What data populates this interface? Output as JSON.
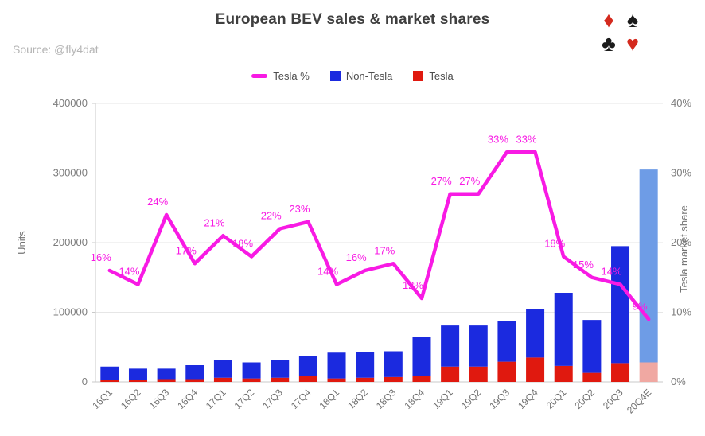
{
  "header": {
    "title": "European BEV sales & market shares",
    "source": "Source: @fly4dat",
    "suits": [
      {
        "name": "diamond",
        "glyph": "♦",
        "color": "#d42a1e"
      },
      {
        "name": "spade",
        "glyph": "♠",
        "color": "#1b1b1b"
      },
      {
        "name": "club",
        "glyph": "♣",
        "color": "#1b1b1b"
      },
      {
        "name": "heart",
        "glyph": "♥",
        "color": "#d42a1e"
      }
    ]
  },
  "legend": [
    {
      "label": "Tesla %",
      "color": "#f81ae4",
      "shape": "line"
    },
    {
      "label": "Non-Tesla",
      "color": "#1b2adf",
      "shape": "square"
    },
    {
      "label": "Tesla",
      "color": "#e0190f",
      "shape": "square"
    }
  ],
  "chart_data": {
    "type": "bar",
    "subtype": "stacked-bars-with-line-overlay",
    "title": "European BEV sales & market shares",
    "categories": [
      "16Q1",
      "16Q2",
      "16Q3",
      "16Q4",
      "17Q1",
      "17Q2",
      "17Q3",
      "17Q4",
      "18Q1",
      "18Q2",
      "18Q3",
      "18Q4",
      "19Q1",
      "19Q2",
      "19Q3",
      "19Q4",
      "20Q1",
      "20Q2",
      "20Q3",
      "20Q4E"
    ],
    "series": [
      {
        "name": "Tesla",
        "type": "bar",
        "axis": "left",
        "color": "#e0190f",
        "estimate_color": "#f0a8a2",
        "values": [
          3000,
          2500,
          4000,
          4000,
          6000,
          5000,
          6000,
          9000,
          5000,
          6000,
          7000,
          8000,
          22000,
          22000,
          29000,
          35000,
          23000,
          13000,
          27000,
          28000
        ]
      },
      {
        "name": "Non-Tesla",
        "type": "bar",
        "axis": "left",
        "color": "#1b2adf",
        "estimate_color": "#6e9ce6",
        "values": [
          19000,
          16500,
          15000,
          20000,
          25000,
          23000,
          25000,
          28000,
          37000,
          37000,
          37000,
          57000,
          59000,
          59000,
          59000,
          70000,
          105000,
          76000,
          168000,
          277000
        ]
      },
      {
        "name": "Tesla %",
        "type": "line",
        "axis": "right",
        "color": "#f81ae4",
        "values": [
          16,
          14,
          24,
          17,
          21,
          18,
          22,
          23,
          14,
          16,
          17,
          12,
          27,
          27,
          33,
          33,
          18,
          15,
          14,
          9
        ]
      }
    ],
    "estimate_index": 19,
    "left_axis": {
      "title": "Units",
      "min": 0,
      "max": 400000,
      "ticks": [
        0,
        100000,
        200000,
        300000,
        400000
      ]
    },
    "right_axis": {
      "title": "Tesla market share",
      "min": 0,
      "max": 40,
      "tick_labels": [
        "0%",
        "10%",
        "20%",
        "30%",
        "40%"
      ]
    },
    "grid": true,
    "legend_position": "top"
  }
}
